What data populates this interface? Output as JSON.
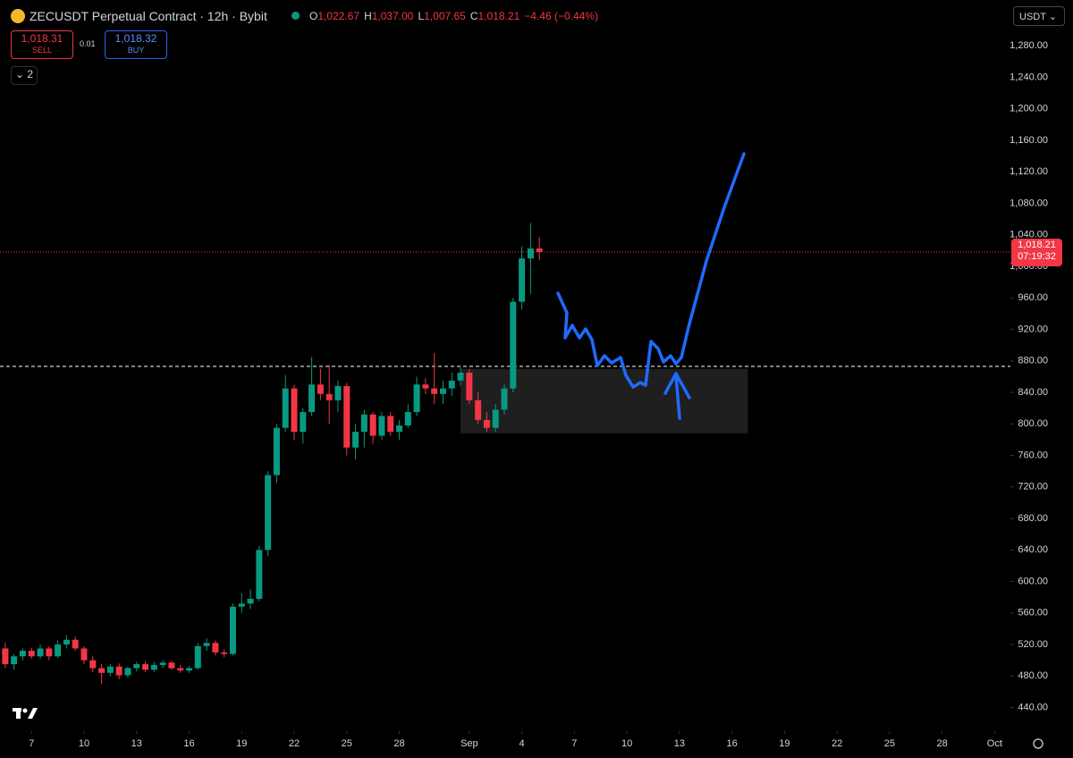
{
  "toolbar": {
    "symbol": "ZECUSDT Perpetual Contract · 12h · Bybit",
    "ohlc": [
      {
        "key": "O",
        "value": "1,022.67"
      },
      {
        "key": "H",
        "value": "1,037.00"
      },
      {
        "key": "L",
        "value": "1,007.65"
      },
      {
        "key": "C",
        "value": "1,018.21"
      }
    ],
    "change": "−4.46 (−0.44%)",
    "sell": {
      "price": "1,018.31",
      "label": "SELL"
    },
    "spread": "0.01",
    "buy": {
      "price": "1,018.32",
      "label": "BUY"
    },
    "indicators": "2",
    "currency": "USDT",
    "last_price": "1,018.21",
    "countdown": "07:19:32"
  },
  "chart_data": {
    "type": "candlestick",
    "up_color": "#089981",
    "down_color": "#f23645",
    "x": [
      5.5,
      6,
      6.5,
      7,
      7.5,
      8,
      8.5,
      9,
      9.5,
      10,
      10.5,
      11,
      11.5,
      12,
      12.5,
      13,
      13.5,
      14,
      14.5,
      15,
      15.5,
      16,
      16.5,
      17,
      17.5,
      18,
      18.5,
      19,
      19.5,
      20,
      20.5,
      21,
      21.5,
      22,
      22.5,
      23,
      23.5,
      24,
      24.5,
      25,
      25.5,
      26,
      26.5,
      27,
      27.5,
      28,
      28.5,
      29,
      29.5,
      30,
      30.5,
      31,
      31.5,
      32,
      32.5,
      33,
      33.5,
      34,
      34.5,
      35,
      35.5,
      36
    ],
    "open": [
      515,
      495,
      505,
      512,
      505,
      515,
      505,
      520,
      526,
      515,
      500,
      490,
      484,
      492,
      481,
      490,
      495,
      488,
      494,
      497,
      490,
      487,
      490,
      518,
      522,
      510,
      508,
      568,
      572,
      578,
      640,
      735,
      795,
      845,
      790,
      815,
      850,
      838,
      830,
      848,
      770,
      790,
      812,
      785,
      810,
      790,
      798,
      815,
      850,
      845,
      838,
      845,
      855,
      865,
      830,
      805,
      795,
      818,
      845,
      955,
      1010,
      1022.67
    ],
    "high": [
      522,
      508,
      515,
      516,
      520,
      518,
      525,
      532,
      530,
      518,
      505,
      495,
      495,
      496,
      492,
      498,
      499,
      498,
      500,
      499,
      494,
      493,
      522,
      528,
      525,
      514,
      572,
      585,
      590,
      645,
      740,
      800,
      862,
      850,
      820,
      885,
      870,
      875,
      855,
      852,
      800,
      818,
      815,
      815,
      815,
      805,
      825,
      860,
      858,
      890,
      855,
      865,
      872,
      870,
      840,
      815,
      825,
      850,
      960,
      1025,
      1055,
      1037
    ],
    "low": [
      490,
      488,
      500,
      502,
      502,
      500,
      503,
      515,
      512,
      495,
      485,
      470,
      480,
      476,
      478,
      486,
      485,
      485,
      490,
      488,
      484,
      484,
      488,
      512,
      506,
      504,
      506,
      560,
      565,
      575,
      632,
      725,
      790,
      780,
      775,
      810,
      830,
      800,
      815,
      760,
      755,
      770,
      775,
      780,
      785,
      780,
      795,
      810,
      838,
      825,
      825,
      835,
      848,
      825,
      800,
      790,
      790,
      812,
      840,
      945,
      965,
      1007.65
    ],
    "close": [
      495,
      505,
      512,
      505,
      515,
      505,
      520,
      526,
      515,
      500,
      490,
      484,
      492,
      481,
      490,
      495,
      488,
      494,
      497,
      490,
      487,
      490,
      518,
      522,
      510,
      508,
      568,
      572,
      578,
      640,
      735,
      795,
      845,
      790,
      815,
      850,
      838,
      830,
      848,
      770,
      790,
      812,
      785,
      810,
      790,
      798,
      815,
      850,
      845,
      838,
      845,
      855,
      865,
      830,
      805,
      795,
      818,
      845,
      955,
      1010,
      1022.67,
      1018.21
    ],
    "level": 873,
    "zone": {
      "x": [
        31.5,
        47.9
      ],
      "y": [
        788,
        870
      ]
    },
    "xlim": [
      5.2,
      62.9
    ],
    "xticks": [
      7,
      10,
      13,
      16,
      19,
      22,
      25,
      28,
      {
        "value": 32,
        "label": "Sep"
      },
      {
        "value": 35,
        "label": "4"
      },
      {
        "value": 38,
        "label": "7"
      },
      {
        "value": 41,
        "label": "10"
      },
      {
        "value": 44,
        "label": "13"
      },
      {
        "value": 47,
        "label": "16"
      },
      {
        "value": 50,
        "label": "19"
      },
      {
        "value": 53,
        "label": "22"
      },
      {
        "value": 56,
        "label": "25"
      },
      {
        "value": 59,
        "label": "28"
      },
      {
        "value": 62,
        "label": "Oct"
      }
    ],
    "ylim": [
      410,
      1338
    ],
    "yticks": [
      {
        "value": 440,
        "label": "440.00"
      },
      {
        "value": 480,
        "label": "480.00"
      },
      {
        "value": 520,
        "label": "520.00"
      },
      {
        "value": 560,
        "label": "560.00"
      },
      {
        "value": 600,
        "label": "600.00"
      },
      {
        "value": 640,
        "label": "640.00"
      },
      {
        "value": 680,
        "label": "680.00"
      },
      {
        "value": 720,
        "label": "720.00"
      },
      {
        "value": 760,
        "label": "760.00"
      },
      {
        "value": 800,
        "label": "800.00"
      },
      {
        "value": 840,
        "label": "840.00"
      },
      {
        "value": 880,
        "label": "880.00"
      },
      {
        "value": 920,
        "label": "920.00"
      },
      {
        "value": 960,
        "label": "960.00"
      },
      {
        "value": 1000,
        "label": "1,000.00"
      },
      {
        "value": 1040,
        "label": "1,040.00"
      },
      {
        "value": 1080,
        "label": "1,080.00"
      },
      {
        "value": 1120,
        "label": "1,120.00"
      },
      {
        "value": 1160,
        "label": "1,160.00"
      },
      {
        "value": 1200,
        "label": "1,200.00"
      },
      {
        "value": 1240,
        "label": "1,240.00"
      },
      {
        "value": 1280,
        "label": "1,280.00"
      }
    ]
  }
}
